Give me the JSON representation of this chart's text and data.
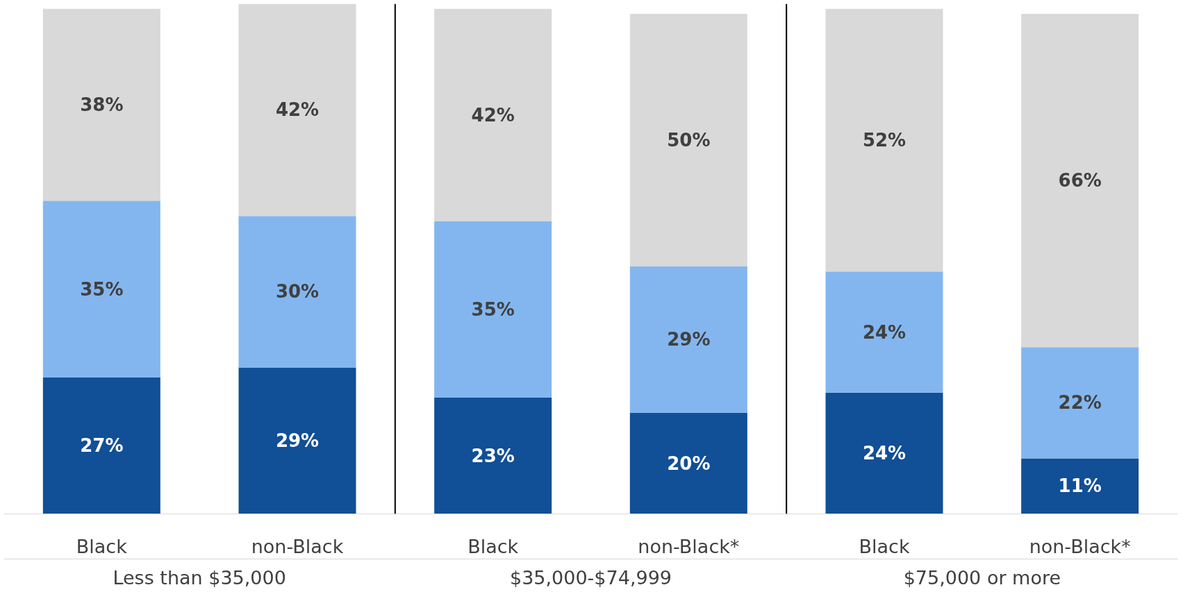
{
  "chart_data": {
    "type": "bar",
    "stacked": true,
    "tick_labels": "x",
    "grid": false,
    "categories": [
      "Black",
      "non-Black",
      "Black",
      "non-Black*",
      "Black",
      "non-Black*"
    ],
    "series": [
      {
        "color": "#114f96",
        "values": [
          27,
          29,
          23,
          20,
          24,
          11
        ],
        "value_labels": [
          "27%",
          "29%",
          "23%",
          "20%",
          "24%",
          "11%"
        ]
      },
      {
        "color": "#83b6ef",
        "values": [
          35,
          30,
          35,
          29,
          24,
          22
        ],
        "value_labels": [
          "35%",
          "30%",
          "35%",
          "29%",
          "24%",
          "22%"
        ]
      },
      {
        "color": "#d9d9d9",
        "values": [
          38,
          42,
          42,
          50,
          52,
          66
        ],
        "value_labels": [
          "38%",
          "42%",
          "42%",
          "50%",
          "52%",
          "66%"
        ]
      }
    ],
    "annotations": [
      "Less than $35,000",
      "$35,000-$74,999",
      "$75,000 or more"
    ]
  }
}
